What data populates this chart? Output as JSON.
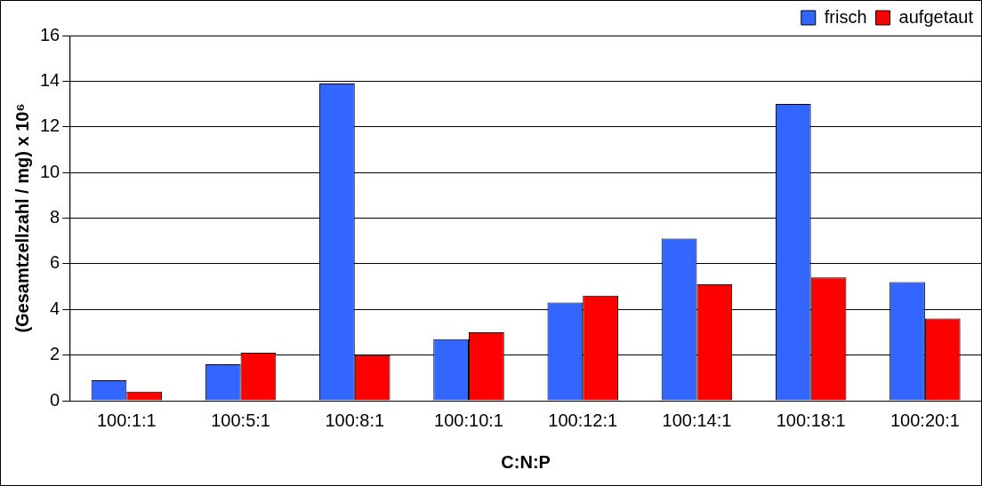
{
  "chart_data": {
    "type": "bar",
    "xlabel": "C:N:P",
    "ylabel": "(Gesamtzellzahl / mg) x 10⁶",
    "categories": [
      "100:1:1",
      "100:5:1",
      "100:8:1",
      "100:10:1",
      "100:12:1",
      "100:14:1",
      "100:18:1",
      "100:20:1"
    ],
    "series": [
      {
        "name": "frisch",
        "color": "#3366ff",
        "values": [
          0.9,
          1.6,
          13.9,
          2.7,
          4.3,
          7.1,
          13.0,
          5.2
        ]
      },
      {
        "name": "aufgetaut",
        "color": "#ff0000",
        "values": [
          0.4,
          2.1,
          2.0,
          3.0,
          4.6,
          5.1,
          5.4,
          3.6
        ]
      }
    ],
    "ylim": [
      0,
      16
    ],
    "yticks": [
      0,
      2,
      4,
      6,
      8,
      10,
      12,
      14,
      16
    ],
    "grid": "y",
    "legend": "top right"
  }
}
